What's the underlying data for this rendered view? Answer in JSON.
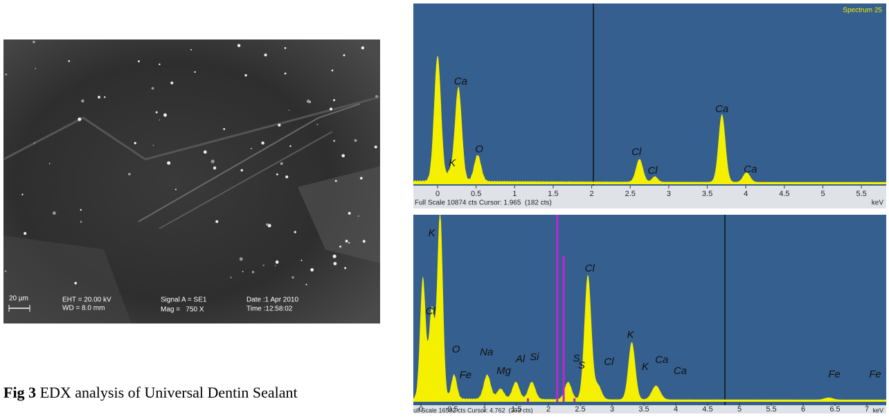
{
  "sem_image": {
    "scale_bar": "20 µm",
    "eht": "EHT = 20.00 kV",
    "wd": "WD = 8.0 mm",
    "signal": "Signal A = SE1",
    "mag": "Mag =   750 X",
    "date": "Date :1 Apr 2010",
    "time": "Time :12:58:02"
  },
  "caption": {
    "label": "Fig 3",
    "text": "EDX analysis of Universal Dentin Sealant"
  },
  "spectra": [
    {
      "title": "Spectrum 25",
      "ticks": [
        0,
        0.5,
        1,
        1.5,
        2,
        2.5,
        3,
        3.5,
        4,
        4.5,
        5,
        5.5
      ],
      "unit": "keV",
      "footer": "Full Scale 10874 cts Cursor: 1.965  (182 cts)",
      "peak_labels": [
        "Ca",
        "K",
        "O",
        "Cl",
        "Cl",
        "Ca",
        "Ca"
      ]
    },
    {
      "ticks": [
        0,
        0.5,
        1,
        1.5,
        2,
        2.5,
        3,
        3.5,
        4,
        4.5,
        5,
        5.5,
        6,
        6.5,
        7
      ],
      "unit": "keV",
      "footer": "ull Scale 16592 cts Cursor: 4.762  (393 cts)",
      "peak_labels": [
        "K",
        "Cl",
        "O",
        "Fe",
        "Na",
        "Mg",
        "Al",
        "Si",
        "S",
        "S",
        "Cl",
        "Cl",
        "K",
        "K",
        "Ca",
        "Ca",
        "Fe",
        "Fe"
      ]
    }
  ]
}
